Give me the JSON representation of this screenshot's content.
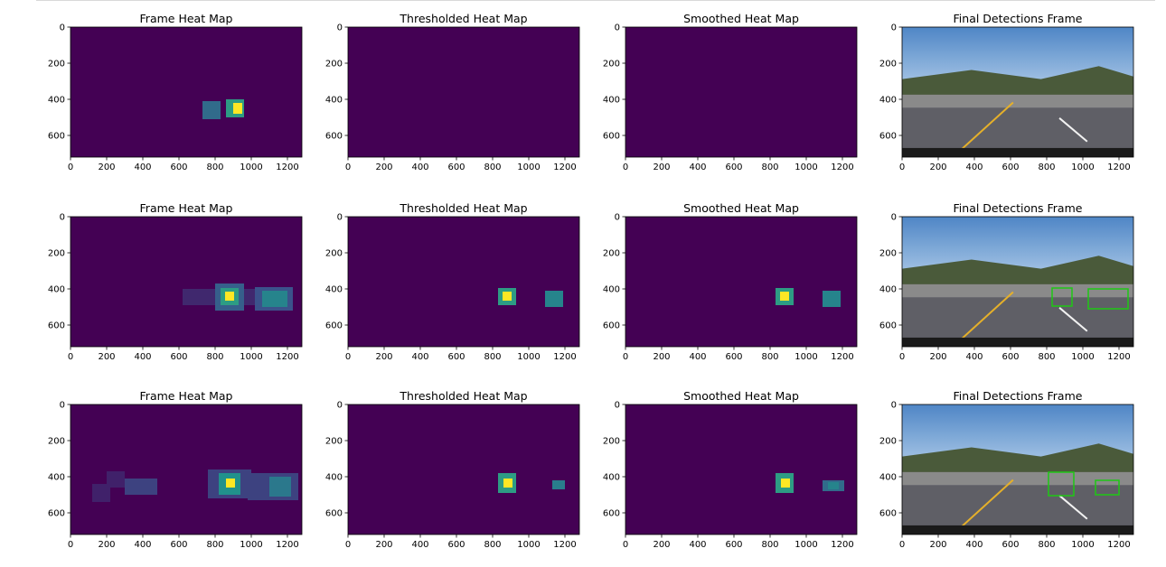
{
  "colors": {
    "viridis_low": "#440154",
    "viridis_teal": "#21918c",
    "viridis_green": "#5ec962",
    "viridis_yellow": "#fde725",
    "detection_box": "#1ec814"
  },
  "chart_data": [
    {
      "type": "heatmap",
      "title": "Frame Heat Map",
      "xticks": [
        "0",
        "200",
        "400",
        "600",
        "800",
        "1000",
        "1200"
      ],
      "yticks": [
        "0",
        "200",
        "400",
        "600"
      ],
      "xlim": [
        0,
        1280
      ],
      "ylim": [
        720,
        0
      ],
      "regions": [
        {
          "x": [
            730,
            830
          ],
          "y": [
            410,
            510
          ],
          "level": 0.35
        },
        {
          "x": [
            860,
            960
          ],
          "y": [
            400,
            500
          ],
          "level": 0.55
        },
        {
          "x": [
            900,
            950
          ],
          "y": [
            420,
            480
          ],
          "level": 1.0
        }
      ]
    },
    {
      "type": "heatmap",
      "title": "Thresholded Heat Map",
      "xticks": [
        "0",
        "200",
        "400",
        "600",
        "800",
        "1000",
        "1200"
      ],
      "yticks": [
        "0",
        "200",
        "400",
        "600"
      ],
      "xlim": [
        0,
        1280
      ],
      "ylim": [
        720,
        0
      ],
      "regions": []
    },
    {
      "type": "heatmap",
      "title": "Smoothed Heat Map",
      "xticks": [
        "0",
        "200",
        "400",
        "600",
        "800",
        "1000",
        "1200"
      ],
      "yticks": [
        "0",
        "200",
        "400",
        "600"
      ],
      "xlim": [
        0,
        1280
      ],
      "ylim": [
        720,
        0
      ],
      "regions": []
    },
    {
      "type": "image",
      "title": "Final Detections Frame",
      "xticks": [
        "0",
        "200",
        "400",
        "600",
        "800",
        "1000",
        "1200"
      ],
      "yticks": [
        "0",
        "200",
        "400",
        "600"
      ],
      "xlim": [
        0,
        1280
      ],
      "ylim": [
        720,
        0
      ],
      "scene": "road",
      "boxes": []
    },
    {
      "type": "heatmap",
      "title": "Frame Heat Map",
      "xticks": [
        "0",
        "200",
        "400",
        "600",
        "800",
        "1000",
        "1200"
      ],
      "yticks": [
        "0",
        "200",
        "400",
        "600"
      ],
      "xlim": [
        0,
        1280
      ],
      "ylim": [
        720,
        0
      ],
      "regions": [
        {
          "x": [
            620,
            1230
          ],
          "y": [
            400,
            490
          ],
          "level": 0.12
        },
        {
          "x": [
            800,
            960
          ],
          "y": [
            370,
            520
          ],
          "level": 0.3
        },
        {
          "x": [
            830,
            930
          ],
          "y": [
            395,
            490
          ],
          "level": 0.55
        },
        {
          "x": [
            855,
            905
          ],
          "y": [
            415,
            465
          ],
          "level": 1.0
        },
        {
          "x": [
            1020,
            1230
          ],
          "y": [
            390,
            520
          ],
          "level": 0.25
        },
        {
          "x": [
            1060,
            1200
          ],
          "y": [
            410,
            500
          ],
          "level": 0.45
        }
      ]
    },
    {
      "type": "heatmap",
      "title": "Thresholded Heat Map",
      "xticks": [
        "0",
        "200",
        "400",
        "600",
        "800",
        "1000",
        "1200"
      ],
      "yticks": [
        "0",
        "200",
        "400",
        "600"
      ],
      "xlim": [
        0,
        1280
      ],
      "ylim": [
        720,
        0
      ],
      "regions": [
        {
          "x": [
            830,
            930
          ],
          "y": [
            395,
            490
          ],
          "level": 0.55
        },
        {
          "x": [
            855,
            905
          ],
          "y": [
            415,
            465
          ],
          "level": 1.0
        },
        {
          "x": [
            1090,
            1190
          ],
          "y": [
            410,
            500
          ],
          "level": 0.45
        }
      ]
    },
    {
      "type": "heatmap",
      "title": "Smoothed Heat Map",
      "xticks": [
        "0",
        "200",
        "400",
        "600",
        "800",
        "1000",
        "1200"
      ],
      "yticks": [
        "0",
        "200",
        "400",
        "600"
      ],
      "xlim": [
        0,
        1280
      ],
      "ylim": [
        720,
        0
      ],
      "regions": [
        {
          "x": [
            830,
            930
          ],
          "y": [
            395,
            490
          ],
          "level": 0.55
        },
        {
          "x": [
            855,
            905
          ],
          "y": [
            415,
            465
          ],
          "level": 1.0
        },
        {
          "x": [
            1090,
            1190
          ],
          "y": [
            410,
            500
          ],
          "level": 0.45
        }
      ]
    },
    {
      "type": "image",
      "title": "Final Detections Frame",
      "xticks": [
        "0",
        "200",
        "400",
        "600",
        "800",
        "1000",
        "1200"
      ],
      "yticks": [
        "0",
        "200",
        "400",
        "600"
      ],
      "xlim": [
        0,
        1280
      ],
      "ylim": [
        720,
        0
      ],
      "scene": "road",
      "boxes": [
        {
          "x": [
            830,
            940
          ],
          "y": [
            395,
            495
          ]
        },
        {
          "x": [
            1030,
            1250
          ],
          "y": [
            400,
            510
          ]
        }
      ]
    },
    {
      "type": "heatmap",
      "title": "Frame Heat Map",
      "xticks": [
        "0",
        "200",
        "400",
        "600",
        "800",
        "1000",
        "1200"
      ],
      "yticks": [
        "0",
        "200",
        "400",
        "600"
      ],
      "xlim": [
        0,
        1280
      ],
      "ylim": [
        720,
        0
      ],
      "regions": [
        {
          "x": [
            120,
            220
          ],
          "y": [
            440,
            540
          ],
          "level": 0.1
        },
        {
          "x": [
            200,
            300
          ],
          "y": [
            370,
            460
          ],
          "level": 0.1
        },
        {
          "x": [
            300,
            480
          ],
          "y": [
            410,
            500
          ],
          "level": 0.2
        },
        {
          "x": [
            760,
            1000
          ],
          "y": [
            360,
            520
          ],
          "level": 0.2
        },
        {
          "x": [
            820,
            940
          ],
          "y": [
            380,
            500
          ],
          "level": 0.5
        },
        {
          "x": [
            860,
            910
          ],
          "y": [
            410,
            460
          ],
          "level": 1.0
        },
        {
          "x": [
            980,
            1260
          ],
          "y": [
            380,
            530
          ],
          "level": 0.2
        },
        {
          "x": [
            1100,
            1220
          ],
          "y": [
            400,
            510
          ],
          "level": 0.4
        }
      ]
    },
    {
      "type": "heatmap",
      "title": "Thresholded Heat Map",
      "xticks": [
        "0",
        "200",
        "400",
        "600",
        "800",
        "1000",
        "1200"
      ],
      "yticks": [
        "0",
        "200",
        "400",
        "600"
      ],
      "xlim": [
        0,
        1280
      ],
      "ylim": [
        720,
        0
      ],
      "regions": [
        {
          "x": [
            830,
            930
          ],
          "y": [
            380,
            490
          ],
          "level": 0.55
        },
        {
          "x": [
            860,
            910
          ],
          "y": [
            410,
            460
          ],
          "level": 1.0
        },
        {
          "x": [
            1130,
            1200
          ],
          "y": [
            420,
            470
          ],
          "level": 0.42
        }
      ]
    },
    {
      "type": "heatmap",
      "title": "Smoothed Heat Map",
      "xticks": [
        "0",
        "200",
        "400",
        "600",
        "800",
        "1000",
        "1200"
      ],
      "yticks": [
        "0",
        "200",
        "400",
        "600"
      ],
      "xlim": [
        0,
        1280
      ],
      "ylim": [
        720,
        0
      ],
      "regions": [
        {
          "x": [
            830,
            930
          ],
          "y": [
            380,
            490
          ],
          "level": 0.55
        },
        {
          "x": [
            860,
            910
          ],
          "y": [
            410,
            460
          ],
          "level": 1.0
        },
        {
          "x": [
            1090,
            1210
          ],
          "y": [
            420,
            480
          ],
          "level": 0.35
        },
        {
          "x": [
            1120,
            1180
          ],
          "y": [
            430,
            470
          ],
          "level": 0.45
        }
      ]
    },
    {
      "type": "image",
      "title": "Final Detections Frame",
      "xticks": [
        "0",
        "200",
        "400",
        "600",
        "800",
        "1000",
        "1200"
      ],
      "yticks": [
        "0",
        "200",
        "400",
        "600"
      ],
      "xlim": [
        0,
        1280
      ],
      "ylim": [
        720,
        0
      ],
      "scene": "road",
      "boxes": [
        {
          "x": [
            810,
            950
          ],
          "y": [
            375,
            505
          ]
        },
        {
          "x": [
            1070,
            1200
          ],
          "y": [
            420,
            500
          ]
        }
      ]
    }
  ]
}
